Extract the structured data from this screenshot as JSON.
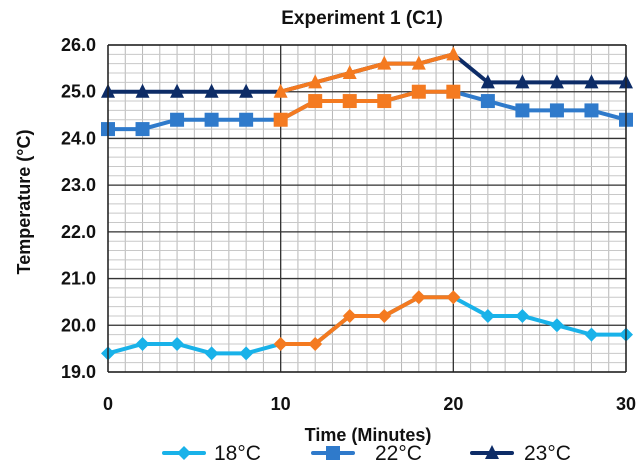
{
  "chart_data": {
    "type": "line",
    "title": "Experiment 1 (C1)",
    "xlabel": "Time (Minutes)",
    "ylabel": "Temperature (°C)",
    "xlim": [
      0,
      30
    ],
    "ylim": [
      19.0,
      26.0
    ],
    "xticks": [
      0,
      10,
      20,
      30
    ],
    "xtick_labels": [
      "0",
      "10",
      "20",
      "30"
    ],
    "yticks": [
      19.0,
      20.0,
      21.0,
      22.0,
      23.0,
      24.0,
      25.0,
      26.0
    ],
    "ytick_labels": [
      "19.0",
      "20.0",
      "21.0",
      "22.0",
      "23.0",
      "24.0",
      "25.0",
      "26.0"
    ],
    "grid": true,
    "legend_position": "bottom",
    "highlight_interval": [
      10,
      20
    ],
    "highlight_color": "#F47A20",
    "series": [
      {
        "name": "18°C",
        "color": "#19B2E9",
        "marker": "diamond",
        "x": [
          0,
          2,
          4,
          6,
          8,
          10,
          12,
          14,
          16,
          18,
          20,
          22,
          24,
          26,
          28,
          30
        ],
        "y": [
          19.4,
          19.6,
          19.6,
          19.4,
          19.4,
          19.6,
          19.6,
          20.2,
          20.2,
          20.6,
          20.6,
          20.2,
          20.2,
          20.0,
          19.8,
          19.8
        ]
      },
      {
        "name": "22°C",
        "color": "#2F7ACB",
        "marker": "square",
        "x": [
          0,
          2,
          4,
          6,
          8,
          10,
          12,
          14,
          16,
          18,
          20,
          22,
          24,
          26,
          28,
          30
        ],
        "y": [
          24.2,
          24.2,
          24.4,
          24.4,
          24.4,
          24.4,
          24.8,
          24.8,
          24.8,
          25.0,
          25.0,
          24.8,
          24.6,
          24.6,
          24.6,
          24.4
        ]
      },
      {
        "name": "23°C",
        "color": "#0D2C67",
        "marker": "triangle",
        "x": [
          0,
          2,
          4,
          6,
          8,
          10,
          12,
          14,
          16,
          18,
          20,
          22,
          24,
          26,
          28,
          30
        ],
        "y": [
          25.0,
          25.0,
          25.0,
          25.0,
          25.0,
          25.0,
          25.2,
          25.4,
          25.6,
          25.6,
          25.8,
          25.2,
          25.2,
          25.2,
          25.2,
          25.2
        ]
      }
    ]
  }
}
